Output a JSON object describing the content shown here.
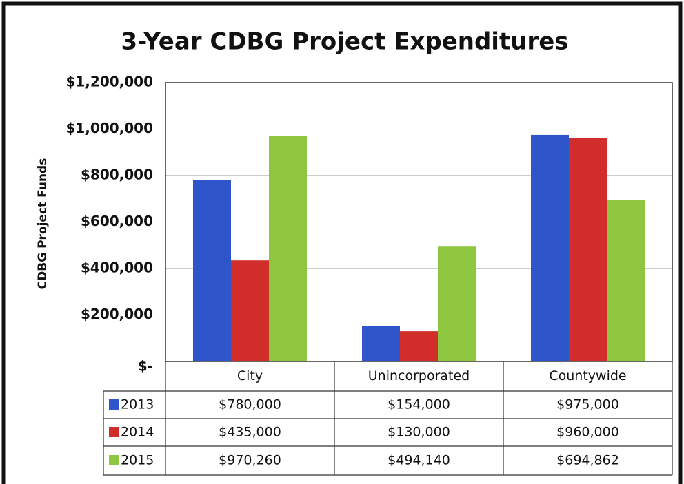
{
  "chart_data": {
    "type": "bar",
    "title": "3-Year CDBG Project Expenditures",
    "y_label": "CDBG Project Funds",
    "categories": [
      "City",
      "Unincorporated",
      "Countywide"
    ],
    "series": [
      {
        "name": "2013",
        "color": "#2e55c9",
        "values": [
          780000,
          154000,
          975000
        ],
        "value_labels": [
          "$780,000",
          "$154,000",
          "$975,000"
        ]
      },
      {
        "name": "2014",
        "color": "#d12e2b",
        "values": [
          435000,
          130000,
          960000
        ],
        "value_labels": [
          "$435,000",
          "$130,000",
          "$960,000"
        ]
      },
      {
        "name": "2015",
        "color": "#8ec63f",
        "values": [
          970260,
          494140,
          694862
        ],
        "value_labels": [
          "$970,260",
          "$494,140",
          "$694,862"
        ]
      }
    ],
    "ylim": [
      0,
      1200000
    ],
    "yticks": [
      {
        "value": 0,
        "label": "$-"
      },
      {
        "value": 200000,
        "label": "$200,000"
      },
      {
        "value": 400000,
        "label": "$400,000"
      },
      {
        "value": 600000,
        "label": "$600,000"
      },
      {
        "value": 800000,
        "label": "$800,000"
      },
      {
        "value": 1000000,
        "label": "$1,000,000"
      },
      {
        "value": 1200000,
        "label": "$1,200,000"
      }
    ],
    "grid": true,
    "data_table": true
  }
}
